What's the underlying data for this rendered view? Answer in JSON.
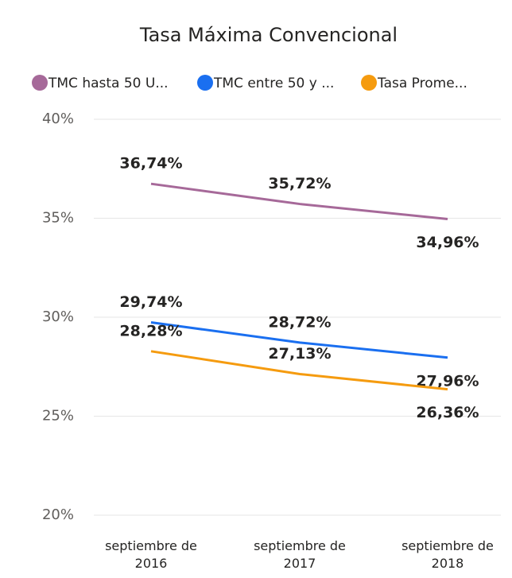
{
  "chart_data": {
    "type": "line",
    "title": "Tasa Máxima Convencional",
    "categories": [
      "septiembre de 2016",
      "septiembre de 2017",
      "septiembre de 2018"
    ],
    "series": [
      {
        "name": "TMC hasta 50 U...",
        "color": "#a66999",
        "values": [
          36.74,
          35.72,
          34.96
        ],
        "value_labels": [
          "36,74%",
          "35,72%",
          "34,96%"
        ]
      },
      {
        "name": "TMC entre 50 y ...",
        "color": "#1a6ff0",
        "values": [
          29.74,
          28.72,
          27.96
        ],
        "value_labels": [
          "29,74%",
          "28,72%",
          "27,96%"
        ]
      },
      {
        "name": "Tasa Prome...",
        "color": "#f59b0f",
        "values": [
          28.28,
          27.13,
          26.36
        ],
        "value_labels": [
          "28,28%",
          "27,13%",
          "26,36%"
        ]
      }
    ],
    "ylim": [
      20,
      40
    ],
    "yticks": [
      {
        "value": 20,
        "label": "20%"
      },
      {
        "value": 25,
        "label": "25%"
      },
      {
        "value": 30,
        "label": "30%"
      },
      {
        "value": 35,
        "label": "35%"
      },
      {
        "value": 40,
        "label": "40%"
      }
    ],
    "grid": true
  }
}
